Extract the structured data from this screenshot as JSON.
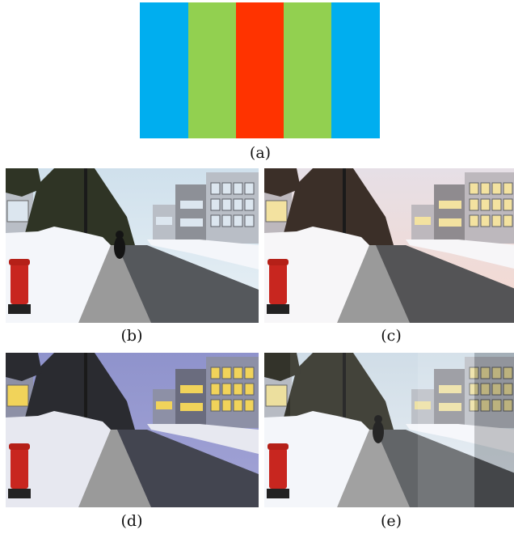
{
  "figure_a": {
    "caption": "(a)",
    "bands": [
      {
        "color": "#00aeef"
      },
      {
        "color": "#92d050"
      },
      {
        "color": "#ff3300"
      },
      {
        "color": "#92d050"
      },
      {
        "color": "#00aeef"
      }
    ]
  },
  "panels": [
    {
      "id": "b",
      "caption": "(b)",
      "variant": "original"
    },
    {
      "id": "c",
      "caption": "(c)",
      "variant": "warm"
    },
    {
      "id": "d",
      "caption": "(d)",
      "variant": "dusk"
    },
    {
      "id": "e",
      "caption": "(e)",
      "variant": "composite"
    }
  ]
}
